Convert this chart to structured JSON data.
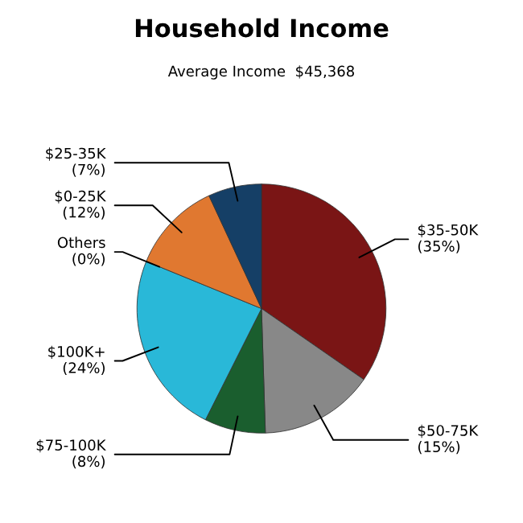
{
  "chart_data": {
    "type": "pie",
    "title": "Household Income",
    "subtitle": "Average Income  $45,368",
    "categories": [
      "$35-50K",
      "$50-75K",
      "$75-100K",
      "$100K+",
      "Others",
      "$0-25K",
      "$25-35K"
    ],
    "values": [
      35,
      15,
      8,
      24,
      0,
      12,
      7
    ],
    "value_labels": [
      "(35%)",
      "(15%)",
      "(8%)",
      "(24%)",
      "(0%)",
      "(12%)",
      "(7%)"
    ],
    "colors": [
      "#7a1515",
      "#888888",
      "#1a5e2e",
      "#29b8d8",
      "#9a9a9a",
      "#e07830",
      "#153f66"
    ],
    "legend": false
  }
}
